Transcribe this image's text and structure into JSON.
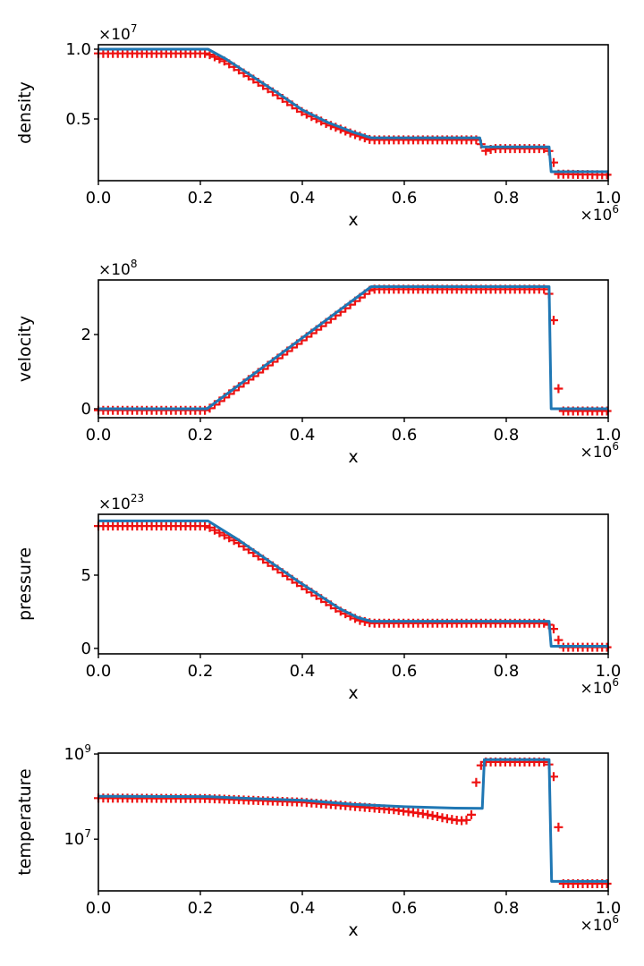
{
  "figure": {
    "description": "Four stacked line plots of density, velocity, pressure and temperature versus x, each showing a solid blue curve with dense red plus markers"
  },
  "chart_data": {
    "type": "line",
    "note": "x values are in units of 1e6 (axis offset label ×10^6); y values are absolute",
    "x_axis": {
      "label": "x",
      "lim": [
        0,
        1
      ],
      "ticks": [
        {
          "v": 0.0,
          "label": "0.0"
        },
        {
          "v": 0.2,
          "label": "0.2"
        },
        {
          "v": 0.4,
          "label": "0.4"
        },
        {
          "v": 0.6,
          "label": "0.6"
        },
        {
          "v": 0.8,
          "label": "0.8"
        },
        {
          "v": 1.0,
          "label": "1.0"
        }
      ],
      "offset": {
        "base": "×10",
        "exp": "6"
      }
    },
    "style": {
      "line_color": "#1f77b4",
      "marker_color": "#ee1111",
      "marker": "plus",
      "marker_step_x": 0.0095
    },
    "panels": [
      {
        "id": "density",
        "ylabel": "density",
        "yscale": "linear",
        "ylim": [
          580000.0,
          10320000.0
        ],
        "offset": {
          "base": "×10",
          "exp": "7"
        },
        "yticks": [
          {
            "v": 10000000.0,
            "label": "1.0"
          },
          {
            "v": 5000000.0,
            "label": "0.5"
          }
        ],
        "line": [
          [
            0,
            10000000.0
          ],
          [
            0.215,
            10000000.0
          ],
          [
            0.25,
            9300000.0
          ],
          [
            0.3,
            8100000.0
          ],
          [
            0.35,
            6900000.0
          ],
          [
            0.4,
            5650000.0
          ],
          [
            0.45,
            4750000.0
          ],
          [
            0.5,
            4050000.0
          ],
          [
            0.535,
            3650000.0
          ],
          [
            0.748,
            3650000.0
          ],
          [
            0.752,
            3000000.0
          ],
          [
            0.884,
            3000000.0
          ],
          [
            0.888,
            1220000.0
          ],
          [
            1.0,
            1220000.0
          ]
        ],
        "markers": [
          [
            0,
            9700000.0
          ],
          [
            0.213,
            9700000.0
          ],
          [
            0.25,
            9100000.0
          ],
          [
            0.3,
            7950000.0
          ],
          [
            0.35,
            6750000.0
          ],
          [
            0.4,
            5500000.0
          ],
          [
            0.45,
            4620000.0
          ],
          [
            0.5,
            3920000.0
          ],
          [
            0.535,
            3500000.0
          ],
          [
            0.745,
            3500000.0
          ],
          [
            0.754,
            3000000.0
          ],
          [
            0.76,
            2720000.0
          ],
          [
            0.775,
            2880000.0
          ],
          [
            0.875,
            2880000.0
          ],
          [
            0.884,
            2700000.0
          ],
          [
            0.892,
            2000000.0
          ],
          [
            0.9,
            1050000.0
          ],
          [
            1.0,
            1000000.0
          ]
        ]
      },
      {
        "id": "velocity",
        "ylabel": "velocity",
        "yscale": "linear",
        "ylim": [
          -24000000.0,
          347000000.0
        ],
        "offset": {
          "base": "×10",
          "exp": "8"
        },
        "yticks": [
          {
            "v": 200000000.0,
            "label": "2"
          },
          {
            "v": 0.0,
            "label": "0"
          }
        ],
        "line": [
          [
            0,
            0
          ],
          [
            0.213,
            0
          ],
          [
            0.535,
            329000000.0
          ],
          [
            0.884,
            329000000.0
          ],
          [
            0.888,
            0
          ],
          [
            1.0,
            0
          ]
        ],
        "markers": [
          [
            0,
            -4000000.0
          ],
          [
            0.213,
            -4000000.0
          ],
          [
            0.535,
            322000000.0
          ],
          [
            0.88,
            322000000.0
          ],
          [
            0.889,
            290000000.0
          ],
          [
            0.897,
            187000000.0
          ],
          [
            0.904,
            18000000.0
          ],
          [
            0.912,
            -6000000.0
          ],
          [
            1.0,
            -6000000.0
          ]
        ]
      },
      {
        "id": "pressure",
        "ylabel": "pressure",
        "yscale": "linear",
        "ylim": [
          -3.7e+22,
          9.15e+23
        ],
        "offset": {
          "base": "×10",
          "exp": "23"
        },
        "yticks": [
          {
            "v": 5e+23,
            "label": "5"
          },
          {
            "v": 0.0,
            "label": "0"
          }
        ],
        "line": [
          [
            0,
            8.7e+23
          ],
          [
            0.215,
            8.7e+23
          ],
          [
            0.275,
            7.4e+23
          ],
          [
            0.333,
            6e+23
          ],
          [
            0.391,
            4.6e+23
          ],
          [
            0.439,
            3.5e+23
          ],
          [
            0.474,
            2.7e+23
          ],
          [
            0.509,
            2.1e+23
          ],
          [
            0.535,
            1.85e+23
          ],
          [
            0.884,
            1.85e+23
          ],
          [
            0.888,
            1.5e+22
          ],
          [
            1.0,
            1.5e+22
          ]
        ],
        "markers": [
          [
            0,
            8.35e+23
          ],
          [
            0.213,
            8.35e+23
          ],
          [
            0.275,
            7.2e+23
          ],
          [
            0.333,
            5.85e+23
          ],
          [
            0.391,
            4.45e+23
          ],
          [
            0.439,
            3.35e+23
          ],
          [
            0.474,
            2.55e+23
          ],
          [
            0.509,
            1.95e+23
          ],
          [
            0.535,
            1.72e+23
          ],
          [
            0.88,
            1.72e+23
          ],
          [
            0.894,
            1.3e+23
          ],
          [
            0.902,
            6e+22
          ],
          [
            0.91,
            8e+21
          ],
          [
            1.0,
            8e+21
          ]
        ]
      },
      {
        "id": "temperature",
        "ylabel": "temperature",
        "yscale": "log",
        "ylim": [
          610000.0,
          1050000000.0
        ],
        "offset": null,
        "yticks": [
          {
            "v": 1000000000.0,
            "base": "10",
            "exp": "9"
          },
          {
            "v": 10000000.0,
            "base": "10",
            "exp": "7"
          }
        ],
        "line": [
          [
            0,
            102000000.0
          ],
          [
            0.215,
            100000000.0
          ],
          [
            0.3,
            90000000.0
          ],
          [
            0.4,
            82000000.0
          ],
          [
            0.5,
            66000000.0
          ],
          [
            0.6,
            58000000.0
          ],
          [
            0.7,
            53500000.0
          ],
          [
            0.753,
            53000000.0
          ],
          [
            0.757,
            740000000.0
          ],
          [
            0.884,
            740000000.0
          ],
          [
            0.889,
            1020000.0
          ],
          [
            1.0,
            1020000.0
          ]
        ],
        "markers": [
          [
            0,
            92000000.0
          ],
          [
            0.215,
            90000000.0
          ],
          [
            0.3,
            82000000.0
          ],
          [
            0.4,
            74000000.0
          ],
          [
            0.5,
            59000000.0
          ],
          [
            0.58,
            49000000.0
          ],
          [
            0.64,
            39000000.0
          ],
          [
            0.68,
            31000000.0
          ],
          [
            0.71,
            27000000.0
          ],
          [
            0.725,
            28500000.0
          ],
          [
            0.733,
            40000000.0
          ],
          [
            0.739,
            170000000.0
          ],
          [
            0.746,
            390000000.0
          ],
          [
            0.753,
            650000000.0
          ],
          [
            0.88,
            650000000.0
          ],
          [
            0.889,
            460000000.0
          ],
          [
            0.901,
            120000000.0
          ],
          [
            0.905,
            900000.0
          ],
          [
            1.0,
            900000.0
          ]
        ]
      }
    ]
  }
}
